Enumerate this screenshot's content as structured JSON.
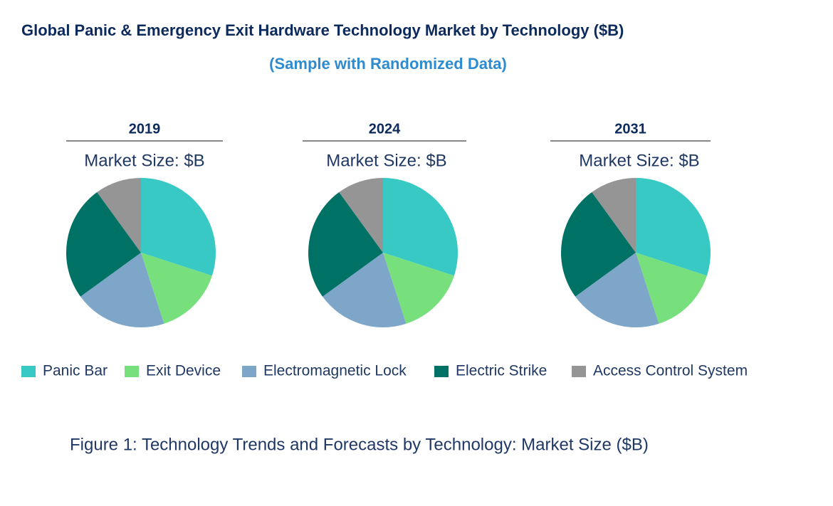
{
  "title": "Global Panic & Emergency Exit Hardware Technology Market by Technology ($B)",
  "subtitle": "(Sample with Randomized Data)",
  "caption": "Figure 1: Technology Trends and Forecasts by Technology: Market Size ($B)",
  "chart_data": [
    {
      "type": "pie",
      "title": "2019",
      "subtitle": "Market Size: $B",
      "categories": [
        "Panic Bar",
        "Exit Device",
        "Electromagnetic Lock",
        "Electric Strike",
        "Access Control System"
      ],
      "values": [
        30,
        15,
        20,
        25,
        10
      ],
      "colors": [
        "#38c9c5",
        "#77e07c",
        "#7ea6c9",
        "#007265",
        "#959595"
      ]
    },
    {
      "type": "pie",
      "title": "2024",
      "subtitle": "Market Size: $B",
      "categories": [
        "Panic Bar",
        "Exit Device",
        "Electromagnetic Lock",
        "Electric Strike",
        "Access Control System"
      ],
      "values": [
        30,
        15,
        20,
        25,
        10
      ],
      "colors": [
        "#38c9c5",
        "#77e07c",
        "#7ea6c9",
        "#007265",
        "#959595"
      ]
    },
    {
      "type": "pie",
      "title": "2031",
      "subtitle": "Market Size: $B",
      "categories": [
        "Panic Bar",
        "Exit Device",
        "Electromagnetic Lock",
        "Electric Strike",
        "Access Control System"
      ],
      "values": [
        30,
        15,
        20,
        25,
        10
      ],
      "colors": [
        "#38c9c5",
        "#77e07c",
        "#7ea6c9",
        "#007265",
        "#959595"
      ]
    }
  ]
}
